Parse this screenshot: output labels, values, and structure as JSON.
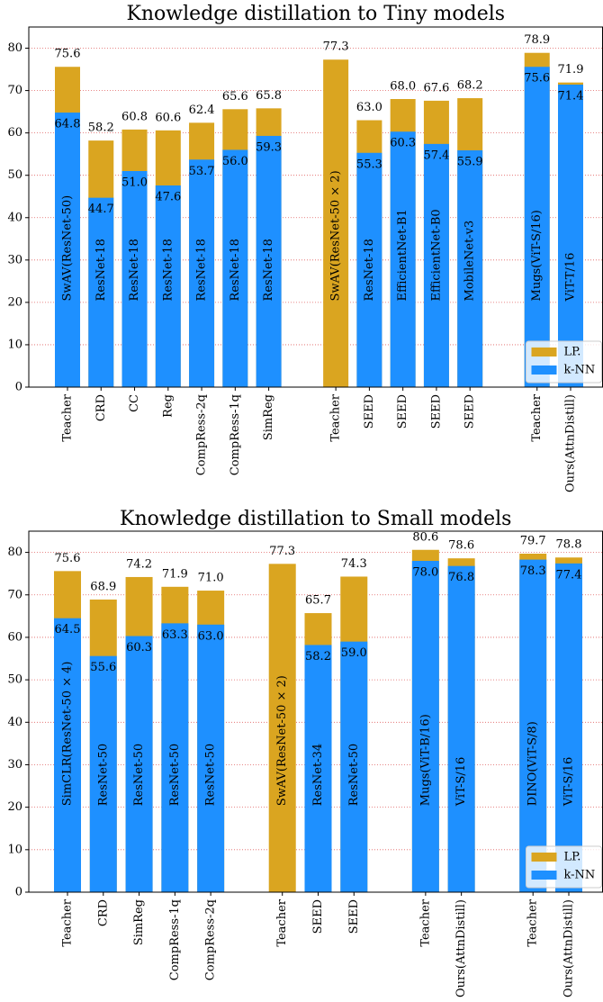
{
  "chart_data": [
    {
      "type": "bar",
      "title": "Knowledge distillation to Tiny models",
      "categories": [
        "Teacher",
        "CRD",
        "CC",
        "Reg",
        "CompRess-2q",
        "CompRess-1q",
        "SimReg",
        null,
        "Teacher",
        "SEED",
        "SEED",
        "SEED",
        "SEED",
        null,
        "Teacher",
        "Ours(AttnDistill)"
      ],
      "bar_labels": [
        "SwAV(ResNet-50)",
        "ResNet-18",
        "ResNet-18",
        "ResNet-18",
        "ResNet-18",
        "ResNet-18",
        "ResNet-18",
        null,
        "SwAV(ResNet-50 × 2)",
        "ResNet-18",
        "EfficientNet-B1",
        "EfficientNet-B0",
        "MobileNet-v3",
        null,
        "Mugs(ViT-S/16)",
        "ViT-T/16"
      ],
      "series": [
        {
          "name": "LP.",
          "color": "#daa520",
          "values": [
            75.6,
            58.2,
            60.8,
            60.6,
            62.4,
            65.6,
            65.8,
            null,
            77.3,
            63.0,
            68.0,
            67.6,
            68.2,
            null,
            78.9,
            71.9
          ],
          "value_labels": [
            "75.6",
            "58.2",
            "60.8",
            "60.6",
            "62.4",
            "65.6",
            "65.8",
            null,
            "77.3",
            "63.0",
            "68.0",
            "67.6",
            "68.2",
            null,
            "78.9",
            "71.9"
          ]
        },
        {
          "name": "k-NN",
          "color": "#1e90ff",
          "values": [
            64.8,
            44.7,
            51.0,
            47.6,
            53.7,
            56.0,
            59.3,
            null,
            null,
            55.3,
            60.3,
            57.4,
            55.9,
            null,
            75.6,
            71.4
          ],
          "value_labels": [
            "64.8",
            "44.7",
            "51.0",
            "47.6",
            "53.7",
            "56.0",
            "59.3",
            null,
            null,
            "55.3",
            "60.3",
            "57.4",
            "55.9",
            null,
            "75.6",
            "71.4"
          ]
        }
      ],
      "ylim": [
        0,
        85
      ],
      "yticks": [
        0,
        10,
        20,
        30,
        40,
        50,
        60,
        70,
        80
      ],
      "grid": true,
      "legend": "lower right"
    },
    {
      "type": "bar",
      "title": "Knowledge distillation to Small models",
      "categories": [
        "Teacher",
        "CRD",
        "SimReg",
        "CompRess-1q",
        "CompRess-2q",
        null,
        "Teacher",
        "SEED",
        "SEED",
        null,
        "Teacher",
        "Ours(AttnDistill)",
        null,
        "Teacher",
        "Ours(AttnDistill)"
      ],
      "bar_labels": [
        "SimCLR(ResNet-50 × 4)",
        "ResNet-50",
        "ResNet-50",
        "ResNet-50",
        "ResNet-50",
        null,
        "SwAV(ResNet-50 × 2)",
        "ResNet-34",
        "ResNet-50",
        null,
        "Mugs(ViT-B/16)",
        "ViT-S/16",
        null,
        "DINO(ViT-S/8)",
        "ViT-S/16"
      ],
      "series": [
        {
          "name": "LP.",
          "color": "#daa520",
          "values": [
            75.6,
            68.9,
            74.2,
            71.9,
            71.0,
            null,
            77.3,
            65.7,
            74.3,
            null,
            80.6,
            78.6,
            null,
            79.7,
            78.8
          ],
          "value_labels": [
            "75.6",
            "68.9",
            "74.2",
            "71.9",
            "71.0",
            null,
            "77.3",
            "65.7",
            "74.3",
            null,
            "80.6",
            "78.6",
            null,
            "79.7",
            "78.8"
          ]
        },
        {
          "name": "k-NN",
          "color": "#1e90ff",
          "values": [
            64.5,
            55.6,
            60.3,
            63.3,
            63.0,
            null,
            null,
            58.2,
            59.0,
            null,
            78.0,
            76.8,
            null,
            78.3,
            77.4
          ],
          "value_labels": [
            "64.5",
            "55.6",
            "60.3",
            "63.3",
            "63.0",
            null,
            null,
            "58.2",
            "59.0",
            null,
            "78.0",
            "76.8",
            null,
            "78.3",
            "77.4"
          ]
        }
      ],
      "ylim": [
        0,
        85
      ],
      "yticks": [
        0,
        10,
        20,
        30,
        40,
        50,
        60,
        70,
        80
      ],
      "grid": true,
      "legend": "lower right"
    }
  ]
}
